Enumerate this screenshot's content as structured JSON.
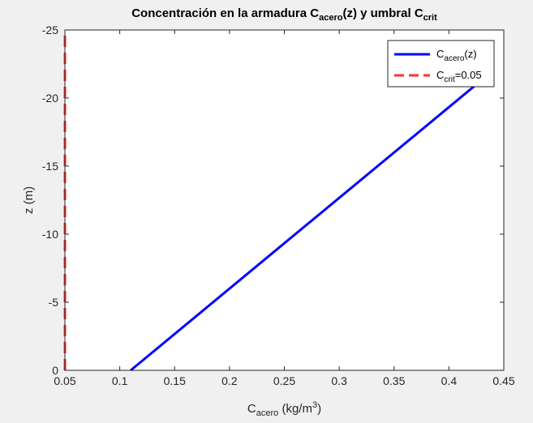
{
  "chart_data": {
    "type": "line",
    "title": {
      "parts": [
        {
          "text": "Concentración en la armadura C",
          "sub": false
        },
        {
          "text": "acero",
          "sub": true
        },
        {
          "text": "(z) y umbral C",
          "sub": false
        },
        {
          "text": "crit",
          "sub": true
        }
      ]
    },
    "xlabel": {
      "parts": [
        {
          "text": "C",
          "kind": "normal"
        },
        {
          "text": "acero",
          "kind": "sub"
        },
        {
          "text": " (kg/m",
          "kind": "normal"
        },
        {
          "text": "3",
          "kind": "sup"
        },
        {
          "text": ")",
          "kind": "normal"
        }
      ]
    },
    "ylabel": "z (m)",
    "xlim": [
      0.05,
      0.45
    ],
    "ylim": [
      0,
      -25
    ],
    "y_axis_reversed": true,
    "x_ticks": [
      0.05,
      0.1,
      0.15,
      0.2,
      0.25,
      0.3,
      0.35,
      0.4,
      0.45
    ],
    "x_tick_labels": [
      "0.05",
      "0.1",
      "0.15",
      "0.2",
      "0.25",
      "0.3",
      "0.35",
      "0.4",
      "0.45"
    ],
    "y_ticks": [
      0,
      -5,
      -10,
      -15,
      -20,
      -25
    ],
    "y_tick_labels": [
      "0",
      "-5",
      "-10",
      "-15",
      "-20",
      "-25"
    ],
    "grid": false,
    "legend_placement": "top-right",
    "series": [
      {
        "id": "c_acero",
        "legend_parts": [
          {
            "text": "C",
            "sub": false
          },
          {
            "text": "acero",
            "sub": true
          },
          {
            "text": "(z)",
            "sub": false
          }
        ],
        "color": "#0000ff",
        "style": "solid",
        "x": [
          0.11,
          0.44
        ],
        "y": [
          0,
          -22
        ]
      },
      {
        "id": "c_crit",
        "legend_parts": [
          {
            "text": "C",
            "sub": false
          },
          {
            "text": "crit",
            "sub": true
          },
          {
            "text": "=0.05",
            "sub": false
          }
        ],
        "color": "#ff3333",
        "style": "dashed",
        "x": [
          0.05,
          0.05
        ],
        "y": [
          0,
          -25
        ]
      }
    ]
  }
}
